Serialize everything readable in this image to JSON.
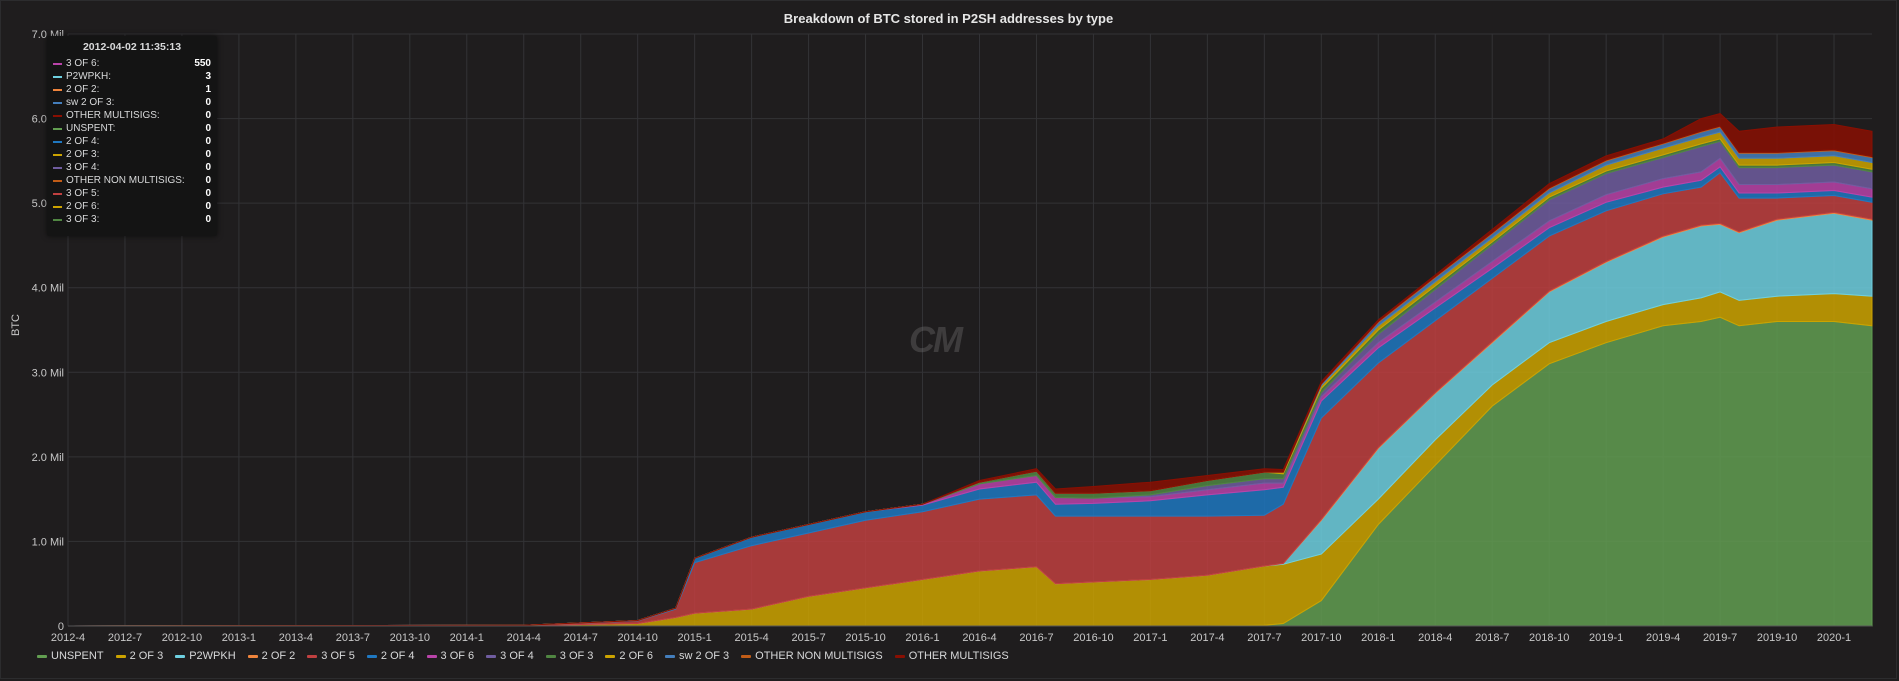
{
  "chart_data": {
    "type": "area",
    "stacked": true,
    "title": "Breakdown of BTC stored in P2SH addresses by type",
    "ylabel": "BTC",
    "ylim": [
      0,
      7.0
    ],
    "y_unit": "Mil",
    "y_ticks": [
      "0",
      "1.0 Mil",
      "2.0 Mil",
      "3.0 Mil",
      "4.0 Mil",
      "5.0 Mil",
      "6.0 Mil",
      "7.0 Mil"
    ],
    "x_ticks": [
      "2012-4",
      "2012-7",
      "2012-10",
      "2013-1",
      "2013-4",
      "2013-7",
      "2013-10",
      "2014-1",
      "2014-4",
      "2014-7",
      "2014-10",
      "2015-1",
      "2015-4",
      "2015-7",
      "2015-10",
      "2016-1",
      "2016-4",
      "2016-7",
      "2016-10",
      "2017-1",
      "2017-4",
      "2017-7",
      "2017-10",
      "2018-1",
      "2018-4",
      "2018-7",
      "2018-10",
      "2019-1",
      "2019-4",
      "2019-7",
      "2019-10",
      "2020-1"
    ],
    "x": [
      "2012-4",
      "2014-4",
      "2014-10",
      "2014-12",
      "2015-1",
      "2015-4",
      "2015-7",
      "2015-10",
      "2016-1",
      "2016-4",
      "2016-7",
      "2016-8",
      "2016-10",
      "2017-1",
      "2017-4",
      "2017-7",
      "2017-8",
      "2017-10",
      "2018-1",
      "2018-4",
      "2018-7",
      "2018-10",
      "2019-1",
      "2019-4",
      "2019-6",
      "2019-7",
      "2019-8",
      "2019-10",
      "2020-1",
      "2020-3"
    ],
    "grid": true,
    "legend_position": "bottom",
    "series": [
      {
        "name": "UNSPENT",
        "color": "#629e51",
        "values": [
          0,
          0,
          0,
          0,
          0,
          0,
          0,
          0,
          0,
          0,
          0,
          0,
          0,
          0,
          0,
          0.01,
          0.03,
          0.3,
          1.2,
          1.9,
          2.6,
          3.1,
          3.35,
          3.55,
          3.6,
          3.65,
          3.55,
          3.6,
          3.6,
          3.55
        ]
      },
      {
        "name": "2 OF 3",
        "color": "#cca300",
        "values": [
          0,
          0.005,
          0.03,
          0.1,
          0.15,
          0.2,
          0.35,
          0.45,
          0.55,
          0.65,
          0.7,
          0.5,
          0.52,
          0.55,
          0.6,
          0.7,
          0.7,
          0.55,
          0.3,
          0.3,
          0.25,
          0.25,
          0.25,
          0.25,
          0.28,
          0.3,
          0.3,
          0.3,
          0.33,
          0.35
        ]
      },
      {
        "name": "P2WPKH",
        "color": "#6ed0e0",
        "values": [
          0,
          0,
          0,
          0,
          0,
          0,
          0,
          0,
          0,
          0,
          0,
          0,
          0,
          0,
          0,
          0,
          0.01,
          0.4,
          0.6,
          0.55,
          0.5,
          0.6,
          0.7,
          0.8,
          0.85,
          0.8,
          0.8,
          0.9,
          0.95,
          0.9
        ]
      },
      {
        "name": "2 OF 2",
        "color": "#ef843c",
        "values": [
          0,
          0,
          0,
          0,
          0,
          0,
          0,
          0,
          0,
          0,
          0,
          0,
          0,
          0,
          0,
          0,
          0,
          0.01,
          0.01,
          0.01,
          0.01,
          0.01,
          0.01,
          0.01,
          0.01,
          0.01,
          0.01,
          0.01,
          0.01,
          0.01
        ]
      },
      {
        "name": "3 OF 5",
        "color": "#c04040",
        "values": [
          0,
          0.005,
          0.03,
          0.1,
          0.6,
          0.75,
          0.75,
          0.8,
          0.8,
          0.85,
          0.85,
          0.8,
          0.78,
          0.75,
          0.7,
          0.6,
          0.7,
          1.2,
          1.0,
          0.85,
          0.75,
          0.65,
          0.6,
          0.5,
          0.45,
          0.6,
          0.4,
          0.25,
          0.2,
          0.2
        ]
      },
      {
        "name": "2 OF 4",
        "color": "#1f78c1",
        "values": [
          0,
          0,
          0.005,
          0.01,
          0.05,
          0.1,
          0.1,
          0.1,
          0.08,
          0.12,
          0.15,
          0.14,
          0.15,
          0.18,
          0.25,
          0.3,
          0.2,
          0.2,
          0.18,
          0.15,
          0.12,
          0.1,
          0.1,
          0.08,
          0.08,
          0.07,
          0.06,
          0.06,
          0.06,
          0.06
        ]
      },
      {
        "name": "3 OF 6",
        "color": "#ba43a9",
        "values": [
          0,
          0,
          0,
          0,
          0,
          0,
          0,
          0,
          0.01,
          0.06,
          0.08,
          0.08,
          0.06,
          0.05,
          0.06,
          0.08,
          0.05,
          0.05,
          0.06,
          0.07,
          0.08,
          0.08,
          0.09,
          0.1,
          0.1,
          0.1,
          0.1,
          0.1,
          0.1,
          0.1
        ]
      },
      {
        "name": "3 OF 4",
        "color": "#705da0",
        "values": [
          0,
          0,
          0,
          0,
          0,
          0,
          0,
          0,
          0,
          0,
          0,
          0,
          0,
          0.02,
          0.05,
          0.05,
          0.05,
          0.05,
          0.1,
          0.15,
          0.2,
          0.25,
          0.25,
          0.25,
          0.3,
          0.2,
          0.2,
          0.2,
          0.2,
          0.2
        ]
      },
      {
        "name": "3 OF 3",
        "color": "#508642",
        "values": [
          0,
          0,
          0,
          0,
          0,
          0,
          0,
          0,
          0,
          0.02,
          0.05,
          0.05,
          0.06,
          0.05,
          0.06,
          0.08,
          0.06,
          0.05,
          0.05,
          0.04,
          0.03,
          0.03,
          0.03,
          0.03,
          0.03,
          0.03,
          0.03,
          0.03,
          0.03,
          0.03
        ]
      },
      {
        "name": "2 OF 6",
        "color": "#cca300",
        "values": [
          0,
          0,
          0,
          0,
          0,
          0,
          0,
          0,
          0,
          0,
          0,
          0,
          0,
          0,
          0,
          0,
          0.02,
          0.03,
          0.05,
          0.05,
          0.05,
          0.05,
          0.07,
          0.08,
          0.08,
          0.08,
          0.08,
          0.08,
          0.08,
          0.08
        ]
      },
      {
        "name": "sw 2 OF 3",
        "color": "#447ebc",
        "values": [
          0,
          0,
          0,
          0,
          0,
          0,
          0,
          0,
          0,
          0,
          0,
          0,
          0,
          0,
          0,
          0,
          0,
          0.02,
          0.04,
          0.05,
          0.05,
          0.05,
          0.05,
          0.05,
          0.06,
          0.06,
          0.06,
          0.06,
          0.06,
          0.06
        ]
      },
      {
        "name": "OTHER NON MULTISIGS",
        "color": "#c15c17",
        "values": [
          0,
          0,
          0,
          0,
          0,
          0,
          0,
          0,
          0,
          0,
          0,
          0,
          0,
          0,
          0,
          0,
          0,
          0,
          0.01,
          0.01,
          0.01,
          0.01,
          0.01,
          0.01,
          0.01,
          0.01,
          0.01,
          0.01,
          0.01,
          0.01
        ]
      },
      {
        "name": "OTHER MULTISIGS",
        "color": "#890f02",
        "values": [
          0,
          0,
          0,
          0,
          0,
          0,
          0,
          0,
          0,
          0.02,
          0.03,
          0.05,
          0.08,
          0.1,
          0.06,
          0.04,
          0.03,
          0.03,
          0.02,
          0.02,
          0.04,
          0.05,
          0.05,
          0.05,
          0.15,
          0.15,
          0.25,
          0.3,
          0.3,
          0.3
        ]
      }
    ]
  },
  "tooltip": {
    "time": "2012-04-02 11:35:13",
    "rows": [
      {
        "name": "3 OF 6:",
        "value": "550",
        "color": "#ba43a9"
      },
      {
        "name": "P2WPKH:",
        "value": "3",
        "color": "#6ed0e0"
      },
      {
        "name": "2 OF 2:",
        "value": "1",
        "color": "#ef843c"
      },
      {
        "name": "sw 2 OF 3:",
        "value": "0",
        "color": "#447ebc"
      },
      {
        "name": "OTHER MULTISIGS:",
        "value": "0",
        "color": "#890f02"
      },
      {
        "name": "UNSPENT:",
        "value": "0",
        "color": "#629e51"
      },
      {
        "name": "2 OF 4:",
        "value": "0",
        "color": "#1f78c1"
      },
      {
        "name": "2 OF 3:",
        "value": "0",
        "color": "#cca300"
      },
      {
        "name": "3 OF 4:",
        "value": "0",
        "color": "#705da0"
      },
      {
        "name": "OTHER NON MULTISIGS:",
        "value": "0",
        "color": "#c15c17"
      },
      {
        "name": "3 OF 5:",
        "value": "0",
        "color": "#c04040"
      },
      {
        "name": "2 OF 6:",
        "value": "0",
        "color": "#cca300"
      },
      {
        "name": "3 OF 3:",
        "value": "0",
        "color": "#508642"
      }
    ]
  }
}
